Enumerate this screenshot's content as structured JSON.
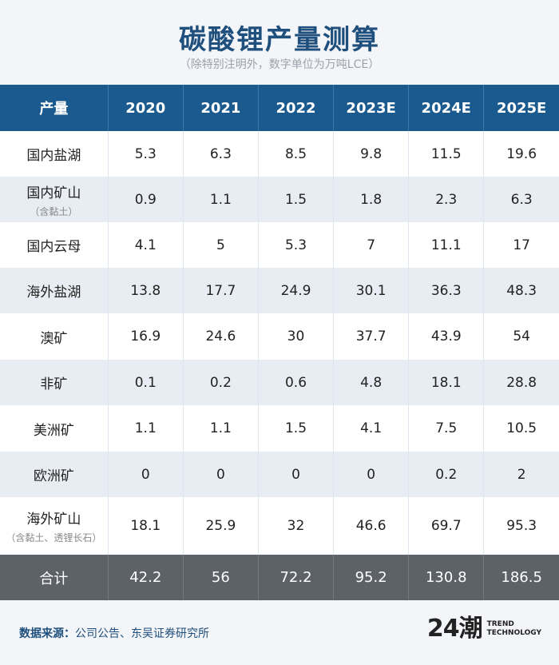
{
  "title": "碳酸锂产量测算",
  "subtitle": "（除特别注明外，数字单位为万吨LCE）",
  "chart_data": {
    "type": "table",
    "columns": [
      "产量",
      "2020",
      "2021",
      "2022",
      "2023E",
      "2024E",
      "2025E"
    ],
    "rows": [
      {
        "label": "国内盐湖",
        "note": "",
        "values": [
          "5.3",
          "6.3",
          "8.5",
          "9.8",
          "11.5",
          "19.6"
        ]
      },
      {
        "label": "国内矿山",
        "note": "（含黏土）",
        "values": [
          "0.9",
          "1.1",
          "1.5",
          "1.8",
          "2.3",
          "6.3"
        ]
      },
      {
        "label": "国内云母",
        "note": "",
        "values": [
          "4.1",
          "5",
          "5.3",
          "7",
          "11.1",
          "17"
        ]
      },
      {
        "label": "海外盐湖",
        "note": "",
        "values": [
          "13.8",
          "17.7",
          "24.9",
          "30.1",
          "36.3",
          "48.3"
        ]
      },
      {
        "label": "澳矿",
        "note": "",
        "values": [
          "16.9",
          "24.6",
          "30",
          "37.7",
          "43.9",
          "54"
        ]
      },
      {
        "label": "非矿",
        "note": "",
        "values": [
          "0.1",
          "0.2",
          "0.6",
          "4.8",
          "18.1",
          "28.8"
        ]
      },
      {
        "label": "美洲矿",
        "note": "",
        "values": [
          "1.1",
          "1.1",
          "1.5",
          "4.1",
          "7.5",
          "10.5"
        ]
      },
      {
        "label": "欧洲矿",
        "note": "",
        "values": [
          "0",
          "0",
          "0",
          "0",
          "0.2",
          "2"
        ]
      },
      {
        "label": "海外矿山",
        "note": "（含黏土、透锂长石）",
        "values": [
          "18.1",
          "25.9",
          "32",
          "46.6",
          "69.7",
          "95.3"
        ]
      }
    ],
    "total": {
      "label": "合计",
      "values": [
        "42.2",
        "56",
        "72.2",
        "95.2",
        "130.8",
        "186.5"
      ]
    }
  },
  "source": {
    "label": "数据来源：",
    "text": "公司公告、东吴证券研究所"
  },
  "logo": {
    "mark": "24潮",
    "line1": "TREND",
    "line2": "TECHNOLOGY"
  },
  "colors": {
    "header": "#1b5a8e",
    "title": "#1f4f7c",
    "total": "#5d6268",
    "stripe": "#e8edf3"
  }
}
